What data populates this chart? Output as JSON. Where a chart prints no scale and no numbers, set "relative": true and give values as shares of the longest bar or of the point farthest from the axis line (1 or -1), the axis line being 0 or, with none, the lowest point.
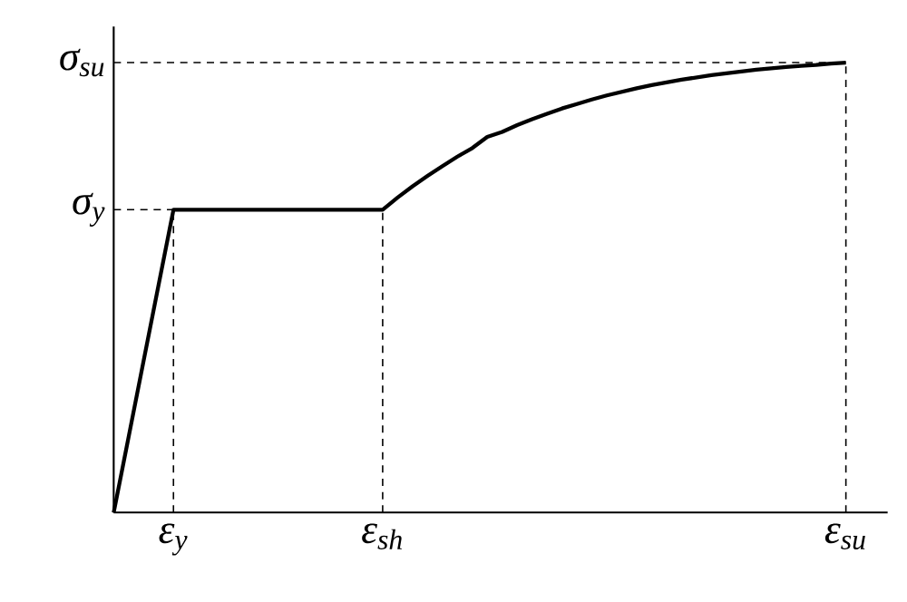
{
  "chart_data": {
    "type": "line",
    "relative": true,
    "categories": [
      null,
      null,
      null,
      null,
      "ε$_{y}$",
      null,
      null,
      null,
      null,
      null,
      null,
      null,
      null,
      null,
      null,
      null,
      null,
      null,
      "ε$_{sh}$",
      null,
      null,
      null,
      null,
      null,
      null,
      null,
      null,
      null,
      null,
      null,
      null,
      null,
      null,
      null,
      null,
      null,
      null,
      null,
      null,
      null,
      null,
      null,
      null,
      null,
      null,
      null,
      null,
      null,
      null,
      "ε$_{su}$"
    ],
    "series": [
      {
        "color": "#000000",
        "values": [
          0,
          0.168,
          0.337,
          0.505,
          0.673,
          0.673,
          0.673,
          0.673,
          0.673,
          0.673,
          0.673,
          0.673,
          0.673,
          0.673,
          0.673,
          0.673,
          0.673,
          0.673,
          0.673,
          0.7,
          0.725,
          0.748,
          0.77,
          0.791,
          0.81,
          0.835,
          0.846,
          0.861,
          0.874,
          0.886,
          0.898,
          0.908,
          0.918,
          0.927,
          0.935,
          0.943,
          0.95,
          0.956,
          0.962,
          0.967,
          0.972,
          0.976,
          0.98,
          0.984,
          0.987,
          0.99,
          0.993,
          0.995,
          0.998,
          1
        ]
      }
    ],
    "ref_lines": [
      {
        "axis": "y",
        "value": 0.673,
        "label": "σ$_{y}$",
        "line_style": "dashed"
      },
      {
        "axis": "y",
        "value": 1,
        "label": "σ$_{su}$",
        "line_style": "dashed"
      },
      {
        "axis": "x",
        "value": "ε$_{y}$",
        "line_style": "dashed"
      },
      {
        "axis": "x",
        "value": "ε$_{sh}$",
        "line_style": "dashed"
      },
      {
        "axis": "x",
        "value": "ε$_{su}$",
        "line_style": "dashed"
      }
    ]
  }
}
